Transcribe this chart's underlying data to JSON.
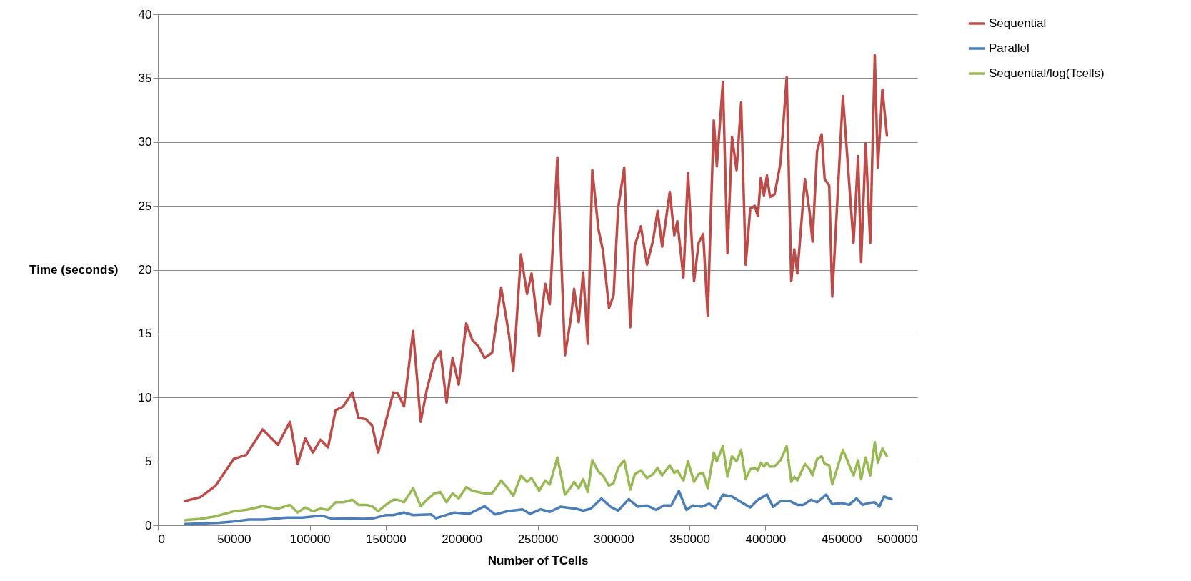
{
  "chart_data": {
    "type": "line",
    "xlabel": "Number of TCells",
    "ylabel": "Time (seconds)",
    "x": [
      18000,
      28000,
      38000,
      50000,
      58000,
      69000,
      79000,
      87000,
      92000,
      97000,
      102000,
      107000,
      112000,
      117000,
      122000,
      128000,
      132000,
      137000,
      141000,
      145000,
      150000,
      155000,
      158000,
      162000,
      168000,
      173000,
      177000,
      182000,
      186000,
      190000,
      194000,
      198000,
      203000,
      207000,
      211000,
      215000,
      220000,
      226000,
      231000,
      234000,
      239000,
      243000,
      246000,
      251000,
      255000,
      258000,
      263000,
      268000,
      272000,
      274000,
      277000,
      280000,
      283000,
      286000,
      290000,
      293000,
      297000,
      300000,
      303000,
      307000,
      311000,
      314000,
      318000,
      322000,
      326000,
      329000,
      332000,
      337000,
      340000,
      342000,
      346000,
      349000,
      353000,
      356000,
      359000,
      362000,
      366000,
      368000,
      372000,
      375000,
      378000,
      381000,
      384000,
      387000,
      390000,
      393000,
      395000,
      397000,
      399000,
      401000,
      403000,
      406000,
      410000,
      414000,
      417000,
      419000,
      421000,
      426000,
      429000,
      431000,
      434000,
      437000,
      439000,
      442000,
      444000,
      451000,
      458000,
      461000,
      463000,
      466000,
      469000,
      472000,
      474000,
      477000,
      480000
    ],
    "series": [
      {
        "name": "Sequential",
        "color": "#be4b48",
        "values": [
          1.9,
          2.2,
          3.1,
          5.2,
          5.5,
          7.5,
          6.3,
          8.1,
          4.8,
          6.8,
          5.7,
          6.7,
          6.1,
          9.0,
          9.3,
          10.4,
          8.4,
          8.3,
          7.8,
          5.7,
          8.1,
          10.4,
          10.3,
          9.3,
          15.2,
          8.1,
          10.6,
          12.9,
          13.6,
          9.6,
          13.1,
          11.0,
          15.8,
          14.5,
          14.0,
          13.1,
          13.5,
          18.6,
          15.0,
          12.1,
          21.2,
          18.1,
          19.7,
          14.8,
          18.9,
          17.3,
          28.8,
          13.3,
          16.3,
          18.5,
          15.9,
          19.8,
          14.2,
          27.8,
          23.2,
          21.5,
          17.0,
          18.0,
          24.8,
          28.0,
          15.5,
          21.9,
          23.4,
          20.4,
          22.3,
          24.6,
          21.8,
          26.1,
          22.7,
          23.8,
          19.4,
          27.6,
          19.1,
          22.1,
          22.8,
          16.4,
          31.7,
          28.1,
          34.7,
          21.3,
          30.4,
          27.8,
          33.1,
          20.4,
          24.8,
          25.0,
          24.2,
          27.2,
          25.8,
          27.4,
          25.7,
          25.9,
          28.4,
          35.1,
          19.1,
          21.6,
          19.7,
          27.1,
          24.6,
          22.2,
          29.3,
          30.6,
          27.1,
          26.6,
          17.9,
          33.6,
          22.1,
          28.9,
          20.6,
          29.9,
          22.1,
          36.8,
          28.0,
          34.1,
          30.5
        ]
      },
      {
        "name": "Parallel",
        "color": "#4a7ebb",
        "x": [
          18000,
          40000,
          50000,
          60000,
          70000,
          85000,
          95000,
          108000,
          115000,
          125000,
          135000,
          142000,
          150000,
          155000,
          162000,
          168000,
          180000,
          183000,
          195000,
          205000,
          215000,
          222000,
          230000,
          240000,
          245000,
          252000,
          258000,
          265000,
          275000,
          280000,
          285000,
          292000,
          298000,
          303000,
          310000,
          316000,
          322000,
          328000,
          333000,
          338000,
          343000,
          348000,
          352000,
          358000,
          363000,
          367000,
          372000,
          378000,
          385000,
          390000,
          395000,
          401000,
          405000,
          410000,
          416000,
          421000,
          425000,
          430000,
          434000,
          440000,
          444000,
          450000,
          455000,
          460000,
          464000,
          468000,
          472000,
          475000,
          478000,
          483000
        ],
        "values": [
          0.1,
          0.2,
          0.3,
          0.45,
          0.45,
          0.6,
          0.6,
          0.75,
          0.5,
          0.55,
          0.5,
          0.55,
          0.8,
          0.8,
          1.0,
          0.8,
          0.85,
          0.55,
          1.0,
          0.9,
          1.5,
          0.85,
          1.1,
          1.25,
          0.9,
          1.25,
          1.05,
          1.45,
          1.3,
          1.15,
          1.3,
          2.1,
          1.45,
          1.15,
          2.05,
          1.45,
          1.55,
          1.2,
          1.55,
          1.55,
          2.7,
          1.2,
          1.55,
          1.45,
          1.7,
          1.35,
          2.4,
          2.25,
          1.75,
          1.4,
          2.0,
          2.4,
          1.45,
          1.9,
          1.9,
          1.6,
          1.6,
          2.0,
          1.8,
          2.4,
          1.65,
          1.75,
          1.6,
          2.1,
          1.6,
          1.75,
          1.8,
          1.45,
          2.25,
          2.05
        ]
      },
      {
        "name": "Sequential/log(Tcells)",
        "color": "#98b954",
        "values": [
          0.4,
          0.5,
          0.7,
          1.1,
          1.2,
          1.5,
          1.3,
          1.6,
          1.0,
          1.4,
          1.1,
          1.3,
          1.2,
          1.8,
          1.8,
          2.0,
          1.6,
          1.6,
          1.5,
          1.1,
          1.6,
          2.0,
          2.0,
          1.8,
          2.9,
          1.5,
          2.0,
          2.5,
          2.6,
          1.8,
          2.5,
          2.1,
          3.0,
          2.7,
          2.6,
          2.5,
          2.5,
          3.5,
          2.8,
          2.3,
          3.9,
          3.4,
          3.7,
          2.7,
          3.5,
          3.2,
          5.3,
          2.4,
          3.0,
          3.4,
          2.9,
          3.6,
          2.6,
          5.1,
          4.2,
          3.9,
          3.1,
          3.3,
          4.5,
          5.1,
          2.8,
          4.0,
          4.3,
          3.7,
          4.0,
          4.5,
          3.9,
          4.7,
          4.1,
          4.3,
          3.5,
          5.0,
          3.4,
          4.0,
          4.1,
          2.9,
          5.7,
          5.0,
          6.2,
          3.8,
          5.4,
          5.0,
          5.9,
          3.6,
          4.4,
          4.5,
          4.3,
          4.9,
          4.6,
          4.9,
          4.6,
          4.6,
          5.1,
          6.2,
          3.4,
          3.8,
          3.5,
          4.8,
          4.4,
          3.9,
          5.2,
          5.4,
          4.8,
          4.7,
          3.2,
          5.9,
          3.9,
          5.1,
          3.6,
          5.3,
          3.9,
          6.5,
          4.9,
          6.0,
          5.4
        ]
      }
    ],
    "xlim": [
      0,
      500000
    ],
    "xticks": [
      0,
      50000,
      100000,
      150000,
      200000,
      250000,
      300000,
      350000,
      400000,
      450000,
      500000
    ],
    "ylim": [
      0,
      40
    ],
    "yticks": [
      0,
      5,
      10,
      15,
      20,
      25,
      30,
      35,
      40
    ],
    "grid": "y",
    "legend": "right",
    "line_style": "solid"
  }
}
